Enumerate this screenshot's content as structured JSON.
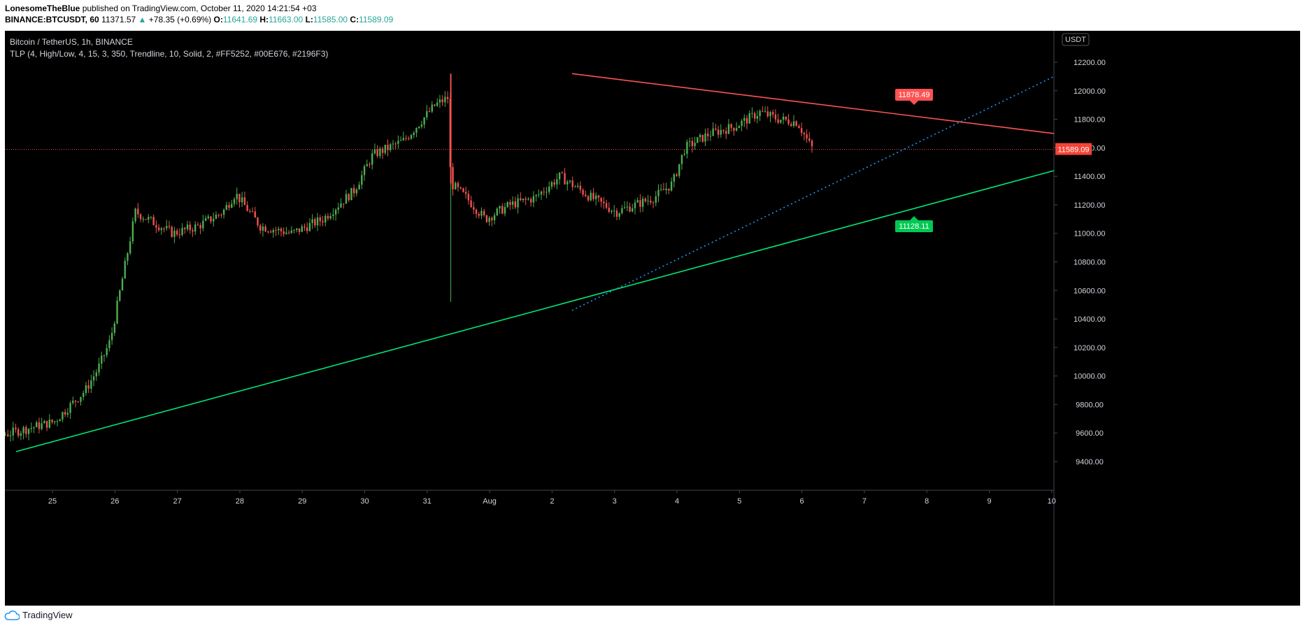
{
  "header": {
    "author": "LonesomeTheBlue",
    "published_text": "published on TradingView.com, October 11, 2020 14:21:54 +03"
  },
  "symbol_line": {
    "symbol": "BINANCE:BTCUSDT, 60",
    "last": "11371.57",
    "change_arrow": "▲",
    "change": "+78.35 (+0.69%)",
    "o_label": "O:",
    "o_value": "11641.69",
    "h_label": "H:",
    "h_value": "11663.00",
    "l_label": "L:",
    "l_value": "11585.00",
    "c_label": "C:",
    "c_value": "11589.09"
  },
  "legend": {
    "title": "Bitcoin / TetherUS, 1h, BINANCE",
    "indicator": "TLP (4, High/Low, 4, 15, 3, 350, Trendline, 10, Solid, 2, #FF5252, #00E676, #2196F3)"
  },
  "footer": {
    "brand": "TradingView",
    "logo_icon": "tradingview-cloud-icon"
  },
  "colors": {
    "up": "#26a69a",
    "down": "#ef5350",
    "up_candle": "#4caf50",
    "resistance": "#ff5252",
    "support": "#00e676",
    "mid": "#2196f3",
    "axis_text": "#d1d4dc",
    "background": "#000000"
  },
  "chart_data": {
    "type": "candlestick",
    "currency": "USDT",
    "ylim": [
      9200,
      12400
    ],
    "y_ticks": [
      "12200.00",
      "12000.00",
      "11800.00",
      "11600.00",
      "11400.00",
      "11200.00",
      "11000.00",
      "10800.00",
      "10600.00",
      "10400.00",
      "10200.00",
      "10000.00",
      "9800.00",
      "9600.00",
      "9400.00"
    ],
    "x_ticks": [
      "25",
      "26",
      "27",
      "28",
      "29",
      "30",
      "31",
      "Aug",
      "2",
      "3",
      "4",
      "5",
      "6",
      "7",
      "8",
      "9",
      "10"
    ],
    "x_range_days": [
      24.25,
      10.1
    ],
    "last_price": "11589.09",
    "price_path": [
      [
        0,
        9560
      ],
      [
        0.5,
        9560
      ],
      [
        1,
        9600
      ],
      [
        1.7,
        9680
      ],
      [
        2.2,
        9900
      ],
      [
        2.4,
        10050
      ],
      [
        2.6,
        10250
      ],
      [
        2.8,
        10700
      ],
      [
        3.0,
        11150
      ],
      [
        3.2,
        11100
      ],
      [
        3.6,
        11000
      ],
      [
        4.0,
        11050
      ],
      [
        4.4,
        11150
      ],
      [
        4.6,
        11280
      ],
      [
        5.0,
        11050
      ],
      [
        5.5,
        11000
      ],
      [
        6.0,
        11100
      ],
      [
        6.5,
        11300
      ],
      [
        6.8,
        11550
      ],
      [
        7.3,
        11650
      ],
      [
        7.8,
        11900
      ],
      [
        8.0,
        11950
      ],
      [
        8.05,
        11350
      ],
      [
        8.3,
        11250
      ],
      [
        8.6,
        11100
      ],
      [
        9.0,
        11200
      ],
      [
        9.4,
        11250
      ],
      [
        9.8,
        11400
      ],
      [
        10.3,
        11250
      ],
      [
        10.7,
        11150
      ],
      [
        11.0,
        11200
      ],
      [
        11.3,
        11250
      ],
      [
        11.6,
        11350
      ],
      [
        11.8,
        11600
      ],
      [
        12.2,
        11700
      ],
      [
        12.6,
        11750
      ],
      [
        13.0,
        11850
      ],
      [
        13.3,
        11800
      ],
      [
        13.6,
        11780
      ],
      [
        13.8,
        11620
      ],
      [
        13.85,
        11589
      ]
    ],
    "trendlines": [
      {
        "name": "resistance",
        "from": [
          "2.3",
          12120
        ],
        "to": [
          "10.1",
          11700
        ],
        "label": "11878.49"
      },
      {
        "name": "support",
        "from": [
          "24.4",
          9470
        ],
        "to": [
          "10.1",
          11440
        ],
        "label": "11128.11"
      },
      {
        "name": "mid-dotted",
        "from": [
          "2.3",
          10460
        ],
        "to": [
          "10.1",
          12100
        ]
      }
    ]
  }
}
